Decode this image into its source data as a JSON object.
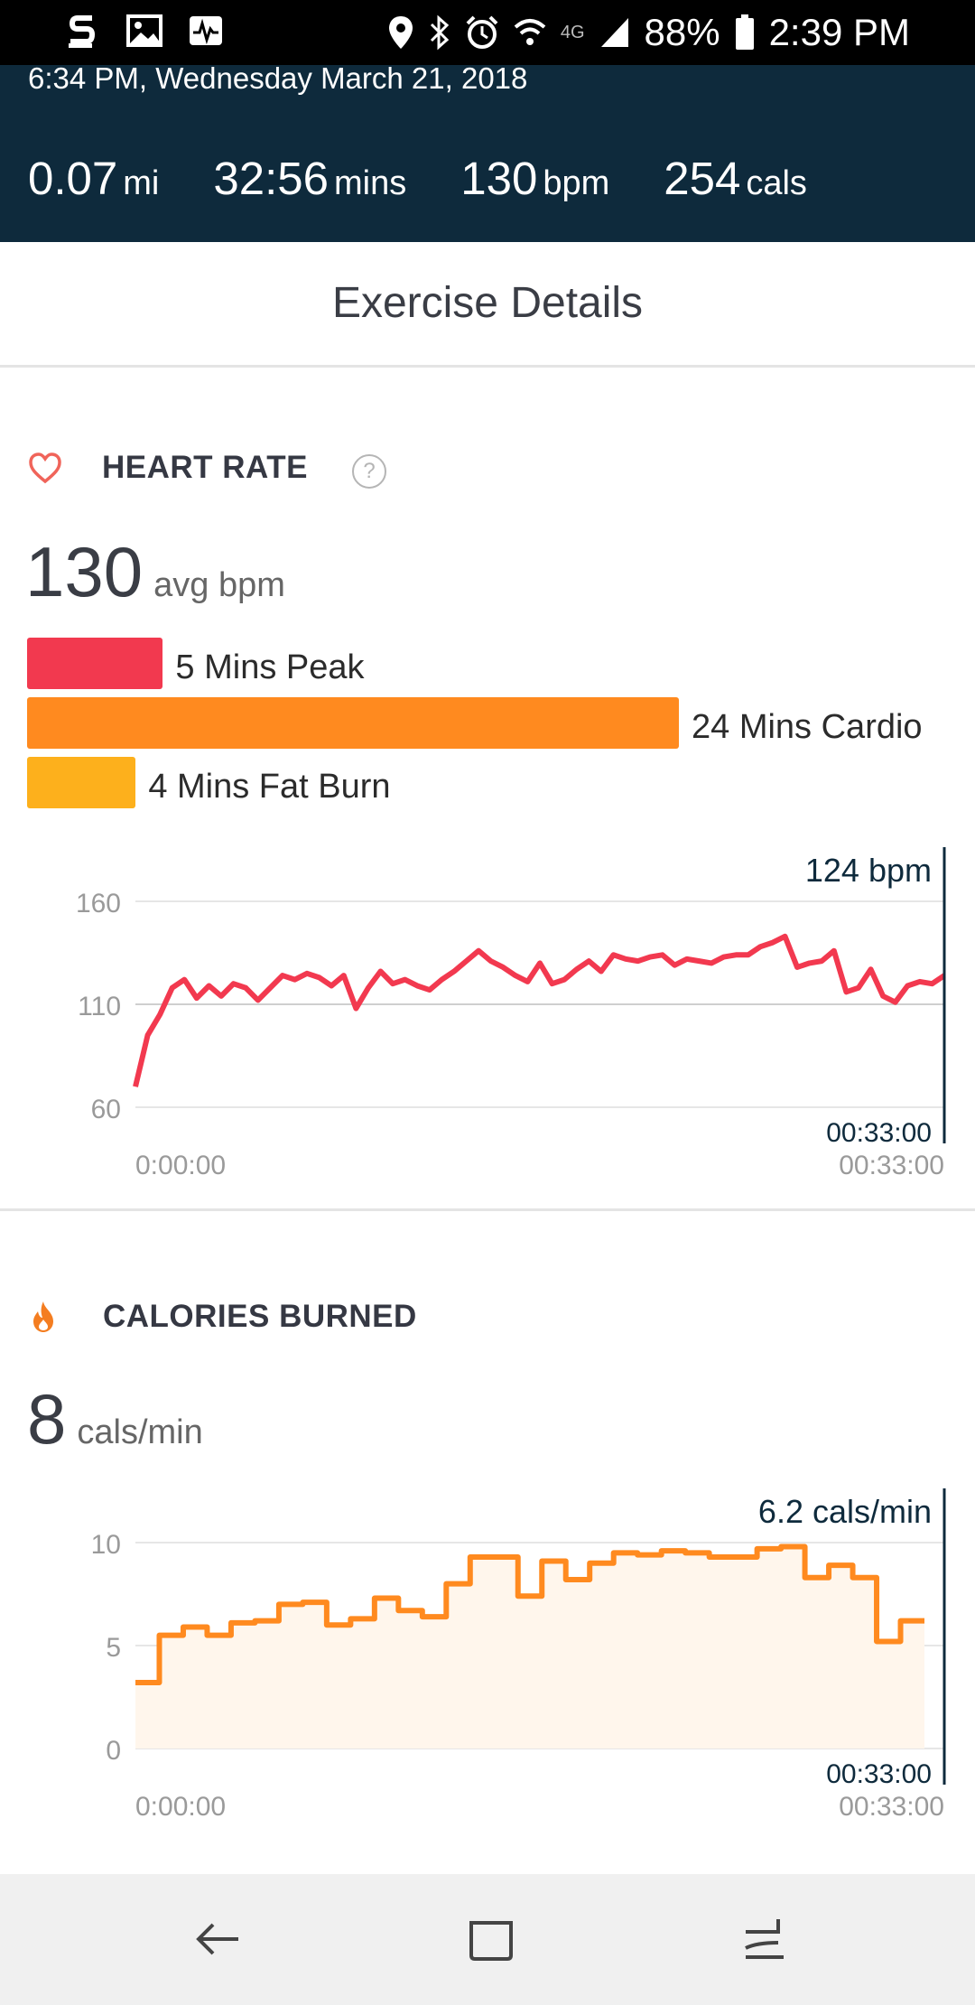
{
  "status_bar": {
    "battery": "88%",
    "time": "2:39 PM",
    "network": "4G",
    "icons_left": [
      "s-health-icon",
      "gallery-icon",
      "activity-icon"
    ],
    "icons_right": [
      "location-icon",
      "bluetooth-icon",
      "alarm-icon",
      "wifi-icon",
      "signal-icon",
      "battery-icon"
    ]
  },
  "header": {
    "datetime": "6:34 PM, Wednesday March 21, 2018",
    "stats": [
      {
        "value": "0.07",
        "unit": "mi"
      },
      {
        "value": "32:56",
        "unit": "mins"
      },
      {
        "value": "130",
        "unit": "bpm"
      },
      {
        "value": "254",
        "unit": "cals"
      }
    ]
  },
  "page_title": "Exercise Details",
  "heart_rate": {
    "title": "HEART RATE",
    "help": "?",
    "avg_value": "130",
    "avg_unit": "avg bpm",
    "zones": [
      {
        "label": "5 Mins Peak",
        "minutes": 5,
        "color": "#f2394f"
      },
      {
        "label": "24 Mins Cardio",
        "minutes": 24,
        "color": "#ff8a1f"
      },
      {
        "label": "4 Mins Fat Burn",
        "minutes": 4,
        "color": "#fdb01c"
      }
    ]
  },
  "calories": {
    "title": "CALORIES BURNED",
    "avg_value": "8",
    "avg_unit": "cals/min"
  },
  "chart_data": [
    {
      "type": "line",
      "title": "",
      "ylim": [
        60,
        160
      ],
      "yticks": [
        "160",
        "110",
        "60"
      ],
      "x_start_label": "0:00:00",
      "x_end_label": "00:33:00",
      "cursor_label": "124 bpm",
      "cursor_time": "00:33:00",
      "line_color": "#f2394f",
      "x": [
        0,
        0.5,
        1,
        1.5,
        2,
        2.5,
        3,
        3.5,
        4,
        4.5,
        5,
        5.5,
        6,
        6.5,
        7,
        7.5,
        8,
        8.5,
        9,
        9.5,
        10,
        10.5,
        11,
        11.5,
        12,
        12.5,
        13,
        13.5,
        14,
        14.5,
        15,
        15.5,
        16,
        16.5,
        17,
        17.5,
        18,
        18.5,
        19,
        19.5,
        20,
        20.5,
        21,
        21.5,
        22,
        22.5,
        23,
        23.5,
        24,
        24.5,
        25,
        25.5,
        26,
        26.5,
        27,
        27.5,
        28,
        28.5,
        29,
        29.5,
        30,
        30.5,
        31,
        31.5,
        32,
        32.5,
        33
      ],
      "values": [
        70,
        95,
        105,
        118,
        122,
        113,
        119,
        114,
        120,
        118,
        112,
        118,
        124,
        122,
        125,
        123,
        119,
        124,
        108,
        118,
        126,
        120,
        122,
        119,
        117,
        122,
        126,
        131,
        136,
        131,
        128,
        124,
        121,
        130,
        120,
        122,
        127,
        131,
        126,
        134,
        132,
        131,
        133,
        134,
        129,
        132,
        131,
        130,
        133,
        134,
        134,
        138,
        140,
        143,
        128,
        130,
        131,
        136,
        116,
        118,
        127,
        114,
        111,
        119,
        121,
        120,
        124
      ]
    },
    {
      "type": "area",
      "title": "",
      "ylim": [
        0,
        10
      ],
      "yticks": [
        "10",
        "5",
        "0"
      ],
      "x_start_label": "0:00:00",
      "x_end_label": "00:33:00",
      "cursor_label": "6.2 cals/min",
      "cursor_time": "00:33:00",
      "line_color": "#ff8a1f",
      "x": [
        0,
        1,
        2,
        3,
        4,
        5,
        6,
        7,
        8,
        9,
        10,
        11,
        12,
        13,
        14,
        15,
        16,
        17,
        18,
        19,
        20,
        21,
        22,
        23,
        24,
        25,
        26,
        27,
        28,
        29,
        30,
        31,
        32,
        33
      ],
      "values": [
        3.2,
        5.5,
        5.9,
        5.5,
        6.1,
        6.2,
        7.0,
        7.1,
        6.0,
        6.3,
        7.3,
        6.7,
        6.4,
        8.0,
        9.3,
        9.3,
        7.4,
        9.1,
        8.2,
        9.0,
        9.5,
        9.4,
        9.6,
        9.5,
        9.3,
        9.3,
        9.7,
        9.8,
        8.3,
        8.9,
        8.3,
        5.2,
        6.2,
        6.2
      ]
    }
  ]
}
